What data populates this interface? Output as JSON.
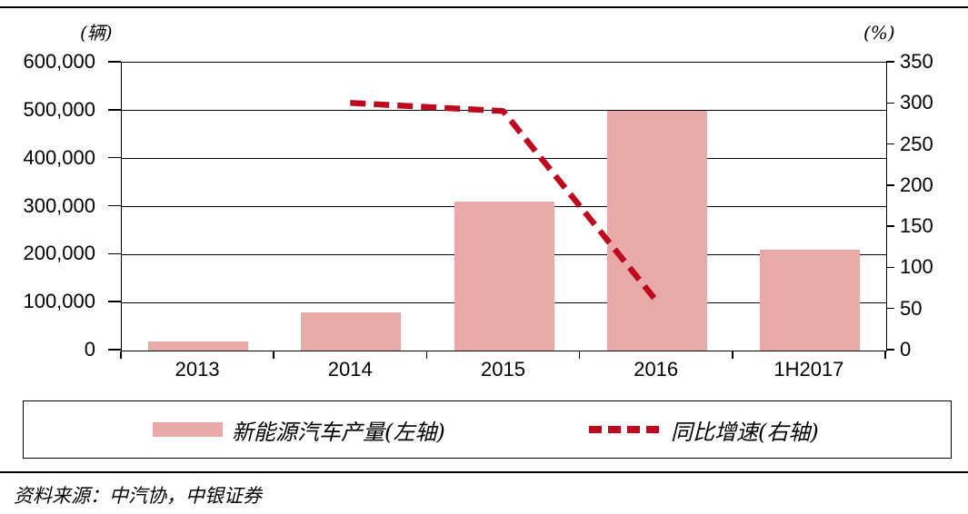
{
  "figure": {
    "source_note": "资料来源：中汽协，中银证券"
  },
  "chart_data": {
    "type": "bar",
    "subtype": "combo-bar-dashed-line",
    "categories": [
      "2013",
      "2014",
      "2015",
      "2016",
      "1H2017"
    ],
    "series": [
      {
        "name": "新能源汽车产量(左轴)",
        "type": "bar",
        "axis": "left",
        "values": [
          18000,
          80000,
          310000,
          500000,
          210000
        ]
      },
      {
        "name": "同比增速(右轴)",
        "type": "dashed-line",
        "axis": "right",
        "values": [
          null,
          300,
          290,
          60,
          null
        ]
      }
    ],
    "left_axis": {
      "unit": "(辆)",
      "min": 0,
      "max": 600000,
      "step": 100000,
      "tick_labels": [
        "600,000",
        "500,000",
        "400,000",
        "300,000",
        "200,000",
        "100,000",
        "0"
      ]
    },
    "right_axis": {
      "unit": "(%)",
      "min": 0,
      "max": 350,
      "step": 50,
      "tick_labels": [
        "350",
        "300",
        "250",
        "200",
        "150",
        "100",
        "50",
        "0"
      ]
    },
    "legend": [
      {
        "label": "新能源汽车产量(左轴)",
        "marker": "bar"
      },
      {
        "label": "同比增速(右轴)",
        "marker": "dashed-line"
      }
    ],
    "colors": {
      "bar": "#E8A9A9",
      "line": "#BE0A1E",
      "axis": "#000000"
    },
    "grid": "horizontal gridlines at left-axis steps",
    "legend_position": "bottom boxed"
  }
}
